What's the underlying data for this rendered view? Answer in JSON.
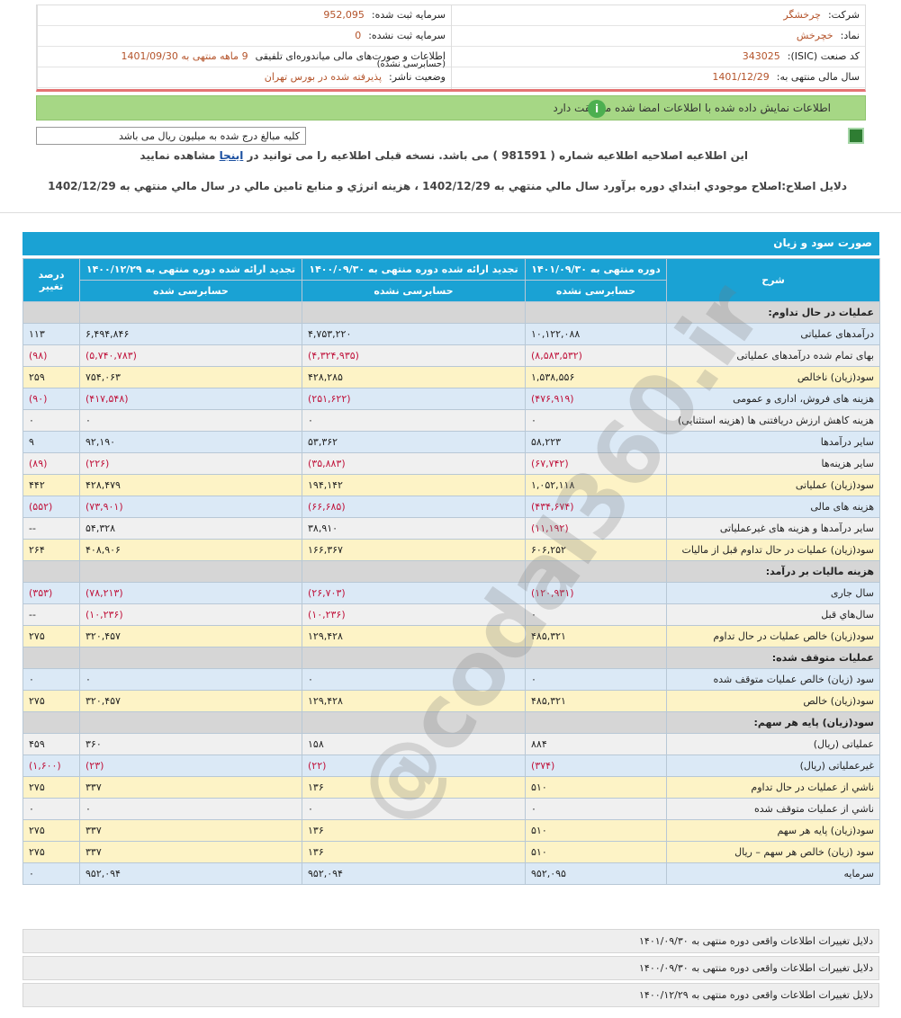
{
  "header": {
    "right": [
      {
        "label": "شرکت:",
        "value": "چرخشگر"
      },
      {
        "label": "نماد:",
        "value": "خچرخش"
      },
      {
        "label": "کد صنعت (ISIC):",
        "value": "343025"
      },
      {
        "label": "سال مالی منتهی به:",
        "value": "1401/12/29"
      }
    ],
    "left": [
      {
        "label": "سرمایه ثبت شده:",
        "value": "952,095"
      },
      {
        "label": "سرمایه ثبت نشده:",
        "value": "0"
      },
      {
        "label": "اطلاعات و صورت‌های مالی میاندوره‌ای تلفیقی",
        "value": "9 ماهه منتهی به 1401/09/30",
        "note": "(حسابرسی نشده)"
      },
      {
        "label": "وضعیت ناشر:",
        "value": "پذیرفته شده در بورس تهران"
      }
    ]
  },
  "status": "اطلاعات نمایش داده شده با اطلاعات امضا شده مطابقت دارد",
  "units": "کلیه مبالغ درج شده به میلیون ریال می باشد",
  "notice": {
    "before": "این اطلاعیه اصلاحیه اطلاعیه شماره ( 981591 ) می باشد. نسخه قبلی اطلاعیه را می توانید در",
    "link": "اینجا",
    "after": "مشاهده نمایید"
  },
  "reason": "دلایل اصلاح:اصلاح موجودي ابتداي دوره برآورد سال مالي منتهي به 1402/12/29 ، هزینه انرژي و منابع تامین مالي در سال مالي منتهي به 1402/12/29",
  "watermark": "@codal360.ir",
  "statement": {
    "title": "صورت سود و زیان",
    "label_header": "شرح",
    "columns": [
      "دوره منتهی به ۱۴۰۱/۰۹/۳۰",
      "تجدید ارائه شده دوره منتهی به ۱۴۰۰/۰۹/۳۰",
      "تجدید ارائه شده دوره منتهی به ۱۴۰۰/۱۲/۲۹",
      "درصد تغییر"
    ],
    "audit": [
      "حسابرسی نشده",
      "حسابرسی نشده",
      "حسابرسی شده"
    ],
    "rows": [
      {
        "label": "عملیات در حال تداوم:",
        "section": true
      },
      {
        "label": "درآمدهای عملیاتی",
        "values": [
          "۱۰,۱۲۲,۰۸۸",
          "۴,۷۵۳,۲۲۰",
          "۶,۴۹۴,۸۴۶",
          "۱۱۳"
        ]
      },
      {
        "label": "بهای تمام شده درآمدهای عملیاتی",
        "values": [
          "(۸,۵۸۳,۵۳۲)",
          "(۴,۳۲۴,۹۳۵)",
          "(۵,۷۴۰,۷۸۳)",
          "(۹۸)"
        ]
      },
      {
        "label": "سود(زیان) ناخالص",
        "values": [
          "۱,۵۳۸,۵۵۶",
          "۴۲۸,۲۸۵",
          "۷۵۴,۰۶۳",
          "۲۵۹"
        ],
        "highlight": true
      },
      {
        "label": "هزینه های فروش، اداری و عمومی",
        "values": [
          "(۴۷۶,۹۱۹)",
          "(۲۵۱,۶۲۲)",
          "(۴۱۷,۵۴۸)",
          "(۹۰)"
        ]
      },
      {
        "label": "هزینه کاهش ارزش دریافتنی ها (هزینه استثنایی)",
        "values": [
          "۰",
          "۰",
          "۰",
          "۰"
        ]
      },
      {
        "label": "سایر درآمدها",
        "values": [
          "۵۸,۲۲۳",
          "۵۳,۳۶۲",
          "۹۲,۱۹۰",
          "۹"
        ]
      },
      {
        "label": "سایر هزینه‌ها",
        "values": [
          "(۶۷,۷۴۲)",
          "(۳۵,۸۸۳)",
          "(۲۲۶)",
          "(۸۹)"
        ]
      },
      {
        "label": "سود(زیان) عملیاتی",
        "values": [
          "۱,۰۵۲,۱۱۸",
          "۱۹۴,۱۴۲",
          "۴۲۸,۴۷۹",
          "۴۴۲"
        ],
        "highlight": true
      },
      {
        "label": "هزینه های مالی",
        "values": [
          "(۴۳۴,۶۷۴)",
          "(۶۶,۶۸۵)",
          "(۷۳,۹۰۱)",
          "(۵۵۲)"
        ]
      },
      {
        "label": "سایر درآمدها و هزینه های غیرعملیاتی",
        "values": [
          "(۱۱,۱۹۲)",
          "۳۸,۹۱۰",
          "۵۴,۳۲۸",
          "--"
        ]
      },
      {
        "label": "سود(زیان) عملیات در حال تداوم قبل از مالیات",
        "values": [
          "۶۰۶,۲۵۲",
          "۱۶۶,۳۶۷",
          "۴۰۸,۹۰۶",
          "۲۶۴"
        ],
        "highlight": true
      },
      {
        "label": "هزینه مالیات بر درآمد:",
        "section": true
      },
      {
        "label": "سال جاری",
        "values": [
          "(۱۲۰,۹۳۱)",
          "(۲۶,۷۰۳)",
          "(۷۸,۲۱۳)",
          "(۳۵۳)"
        ]
      },
      {
        "label": "سال‌هاي قبل",
        "values": [
          "۰",
          "(۱۰,۲۳۶)",
          "(۱۰,۲۳۶)",
          "--"
        ]
      },
      {
        "label": "سود(زیان) خالص عملیات در حال تداوم",
        "values": [
          "۴۸۵,۳۲۱",
          "۱۲۹,۴۲۸",
          "۳۲۰,۴۵۷",
          "۲۷۵"
        ],
        "highlight": true
      },
      {
        "label": "عملیات متوقف شده:",
        "section": true
      },
      {
        "label": "سود (زیان) خالص عملیات متوقف شده",
        "values": [
          "۰",
          "۰",
          "۰",
          "۰"
        ]
      },
      {
        "label": "سود(زیان) خالص",
        "values": [
          "۴۸۵,۳۲۱",
          "۱۲۹,۴۲۸",
          "۳۲۰,۴۵۷",
          "۲۷۵"
        ],
        "highlight": true
      },
      {
        "label": "سود(زیان) پایه هر سهم:",
        "section": true
      },
      {
        "label": "عملیاتی (ریال)",
        "values": [
          "۸۸۴",
          "۱۵۸",
          "۳۶۰",
          "۴۵۹"
        ]
      },
      {
        "label": "غیرعملیاتی (ریال)",
        "values": [
          "(۳۷۴)",
          "(۲۲)",
          "(۲۳)",
          "(۱,۶۰۰)"
        ]
      },
      {
        "label": "ناشي از عملیات در حال تداوم",
        "values": [
          "۵۱۰",
          "۱۳۶",
          "۳۳۷",
          "۲۷۵"
        ],
        "highlight": true
      },
      {
        "label": "ناشي از عملیات متوقف شده",
        "values": [
          "۰",
          "۰",
          "۰",
          "۰"
        ]
      },
      {
        "label": "سود(زیان) پایه هر سهم",
        "values": [
          "۵۱۰",
          "۱۳۶",
          "۳۳۷",
          "۲۷۵"
        ],
        "highlight": true
      },
      {
        "label": "سود (زیان) خالص هر سهم – ریال",
        "values": [
          "۵۱۰",
          "۱۳۶",
          "۳۳۷",
          "۲۷۵"
        ],
        "highlight": true
      },
      {
        "label": "سرمایه",
        "values": [
          "۹۵۲,۰۹۵",
          "۹۵۲,۰۹۴",
          "۹۵۲,۰۹۴",
          "۰"
        ]
      }
    ]
  },
  "changes": [
    "دلایل تغییرات اطلاعات واقعی دوره منتهی به ۱۴۰۱/۰۹/۳۰",
    "دلایل تغییرات اطلاعات واقعی دوره منتهی به ۱۴۰۰/۰۹/۳۰",
    "دلایل تغییرات اطلاعات واقعی دوره منتهی به ۱۴۰۰/۱۲/۲۹"
  ]
}
